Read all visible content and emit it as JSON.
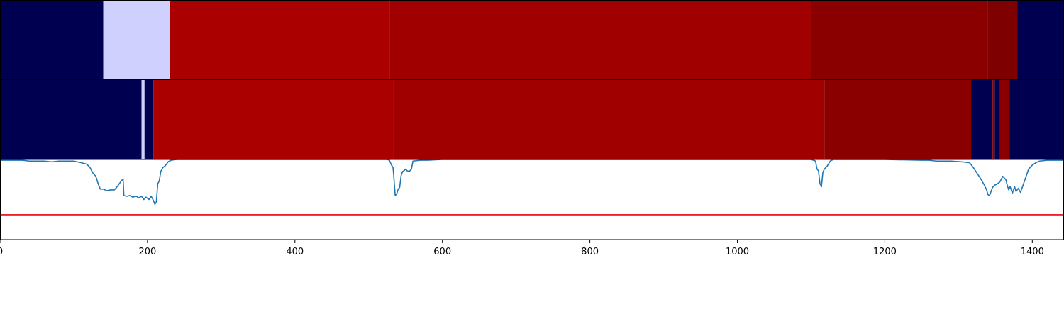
{
  "chart_data": [
    {
      "type": "heatmap",
      "x_range": [
        0,
        1443
      ],
      "segments": [
        {
          "start": 0,
          "end": 140,
          "color": "#000050"
        },
        {
          "start": 140,
          "end": 230,
          "color": "#d0d0ff"
        },
        {
          "start": 230,
          "end": 529,
          "color": "#ab0000"
        },
        {
          "start": 529,
          "end": 1100,
          "color": "#a00000"
        },
        {
          "start": 1100,
          "end": 1340,
          "color": "#8a0000"
        },
        {
          "start": 1340,
          "end": 1380,
          "color": "#7e0000"
        },
        {
          "start": 1380,
          "end": 1443,
          "color": "#000050"
        }
      ]
    },
    {
      "type": "heatmap",
      "x_range": [
        0,
        1443
      ],
      "segments": [
        {
          "start": 0,
          "end": 192,
          "color": "#000050"
        },
        {
          "start": 192,
          "end": 196,
          "color": "#d0d0ff"
        },
        {
          "start": 196,
          "end": 208,
          "color": "#000050"
        },
        {
          "start": 208,
          "end": 533,
          "color": "#ab0000"
        },
        {
          "start": 533,
          "end": 1118,
          "color": "#a00000"
        },
        {
          "start": 1118,
          "end": 1317,
          "color": "#8a0000"
        },
        {
          "start": 1317,
          "end": 1346,
          "color": "#000050"
        },
        {
          "start": 1346,
          "end": 1349,
          "color": "#8a0000"
        },
        {
          "start": 1349,
          "end": 1356,
          "color": "#000050"
        },
        {
          "start": 1356,
          "end": 1369,
          "color": "#8a0000"
        },
        {
          "start": 1369,
          "end": 1443,
          "color": "#000050"
        }
      ]
    },
    {
      "type": "line",
      "x_range": [
        0,
        1443
      ],
      "y_range": [
        0,
        1
      ],
      "threshold": 0.31,
      "threshold_color": "#e8000b",
      "line_color": "#1f77b4",
      "series": [
        {
          "points": [
            [
              0,
              0.99
            ],
            [
              30,
              0.99
            ],
            [
              40,
              0.98
            ],
            [
              60,
              0.98
            ],
            [
              70,
              0.97
            ],
            [
              80,
              0.98
            ],
            [
              100,
              0.98
            ],
            [
              110,
              0.96
            ],
            [
              118,
              0.94
            ],
            [
              122,
              0.9
            ],
            [
              126,
              0.83
            ],
            [
              130,
              0.79
            ],
            [
              133,
              0.7
            ],
            [
              136,
              0.63
            ],
            [
              140,
              0.63
            ],
            [
              145,
              0.61
            ],
            [
              150,
              0.62
            ],
            [
              155,
              0.62
            ],
            [
              158,
              0.65
            ],
            [
              162,
              0.7
            ],
            [
              165,
              0.74
            ],
            [
              167,
              0.75
            ],
            [
              168,
              0.55
            ],
            [
              172,
              0.54
            ],
            [
              176,
              0.55
            ],
            [
              180,
              0.53
            ],
            [
              185,
              0.54
            ],
            [
              188,
              0.52
            ],
            [
              192,
              0.54
            ],
            [
              195,
              0.5
            ],
            [
              198,
              0.53
            ],
            [
              202,
              0.5
            ],
            [
              205,
              0.54
            ],
            [
              208,
              0.49
            ],
            [
              210,
              0.44
            ],
            [
              212,
              0.47
            ],
            [
              214,
              0.7
            ],
            [
              216,
              0.73
            ],
            [
              218,
              0.85
            ],
            [
              221,
              0.9
            ],
            [
              224,
              0.92
            ],
            [
              228,
              0.97
            ],
            [
              232,
              0.99
            ],
            [
              240,
              1.0
            ],
            [
              300,
              1.0
            ],
            [
              400,
              1.0
            ],
            [
              500,
              1.0
            ],
            [
              525,
              1.0
            ],
            [
              528,
              0.99
            ],
            [
              531,
              0.93
            ],
            [
              533,
              0.9
            ],
            [
              534,
              0.8
            ],
            [
              535,
              0.67
            ],
            [
              536,
              0.55
            ],
            [
              538,
              0.57
            ],
            [
              540,
              0.63
            ],
            [
              542,
              0.65
            ],
            [
              544,
              0.8
            ],
            [
              546,
              0.85
            ],
            [
              548,
              0.86
            ],
            [
              550,
              0.88
            ],
            [
              552,
              0.86
            ],
            [
              555,
              0.85
            ],
            [
              558,
              0.88
            ],
            [
              560,
              0.98
            ],
            [
              570,
              0.99
            ],
            [
              580,
              0.99
            ],
            [
              600,
              1.0
            ],
            [
              800,
              1.0
            ],
            [
              1000,
              1.0
            ],
            [
              1100,
              1.0
            ],
            [
              1106,
              0.98
            ],
            [
              1108,
              0.88
            ],
            [
              1110,
              0.86
            ],
            [
              1112,
              0.7
            ],
            [
              1114,
              0.66
            ],
            [
              1116,
              0.84
            ],
            [
              1118,
              0.88
            ],
            [
              1122,
              0.92
            ],
            [
              1126,
              0.98
            ],
            [
              1130,
              1.0
            ],
            [
              1200,
              1.0
            ],
            [
              1250,
              0.99
            ],
            [
              1260,
              0.99
            ],
            [
              1270,
              0.98
            ],
            [
              1290,
              0.98
            ],
            [
              1305,
              0.97
            ],
            [
              1315,
              0.96
            ],
            [
              1320,
              0.9
            ],
            [
              1325,
              0.83
            ],
            [
              1330,
              0.76
            ],
            [
              1335,
              0.68
            ],
            [
              1338,
              0.62
            ],
            [
              1340,
              0.56
            ],
            [
              1342,
              0.55
            ],
            [
              1344,
              0.6
            ],
            [
              1346,
              0.65
            ],
            [
              1349,
              0.68
            ],
            [
              1352,
              0.69
            ],
            [
              1356,
              0.72
            ],
            [
              1360,
              0.79
            ],
            [
              1364,
              0.75
            ],
            [
              1366,
              0.68
            ],
            [
              1368,
              0.62
            ],
            [
              1370,
              0.66
            ],
            [
              1373,
              0.58
            ],
            [
              1376,
              0.66
            ],
            [
              1378,
              0.6
            ],
            [
              1381,
              0.64
            ],
            [
              1384,
              0.59
            ],
            [
              1386,
              0.64
            ],
            [
              1389,
              0.72
            ],
            [
              1392,
              0.8
            ],
            [
              1395,
              0.88
            ],
            [
              1400,
              0.93
            ],
            [
              1405,
              0.96
            ],
            [
              1410,
              0.98
            ],
            [
              1420,
              0.99
            ],
            [
              1443,
              0.99
            ]
          ]
        }
      ],
      "xticks": [
        0,
        200,
        400,
        600,
        800,
        1000,
        1200,
        1400
      ],
      "xtick_labels": [
        "0",
        "200",
        "400",
        "600",
        "800",
        "1000",
        "1200",
        "1400"
      ]
    }
  ]
}
